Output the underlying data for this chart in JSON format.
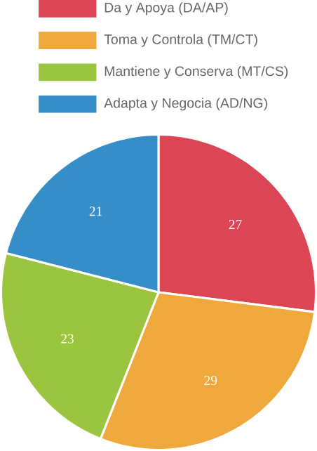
{
  "chart_data": {
    "type": "pie",
    "categories": [
      "Da y Apoya (DA/AP)",
      "Toma y Controla (TM/CT)",
      "Mantiene y Conserva (MT/CS)",
      "Adapta y Negocia (AD/NG)"
    ],
    "values": [
      27,
      29,
      23,
      21
    ],
    "colors": [
      "#dc4554",
      "#efa83b",
      "#9bc53f",
      "#368ec8"
    ],
    "data_labels": true,
    "legend": "top"
  }
}
